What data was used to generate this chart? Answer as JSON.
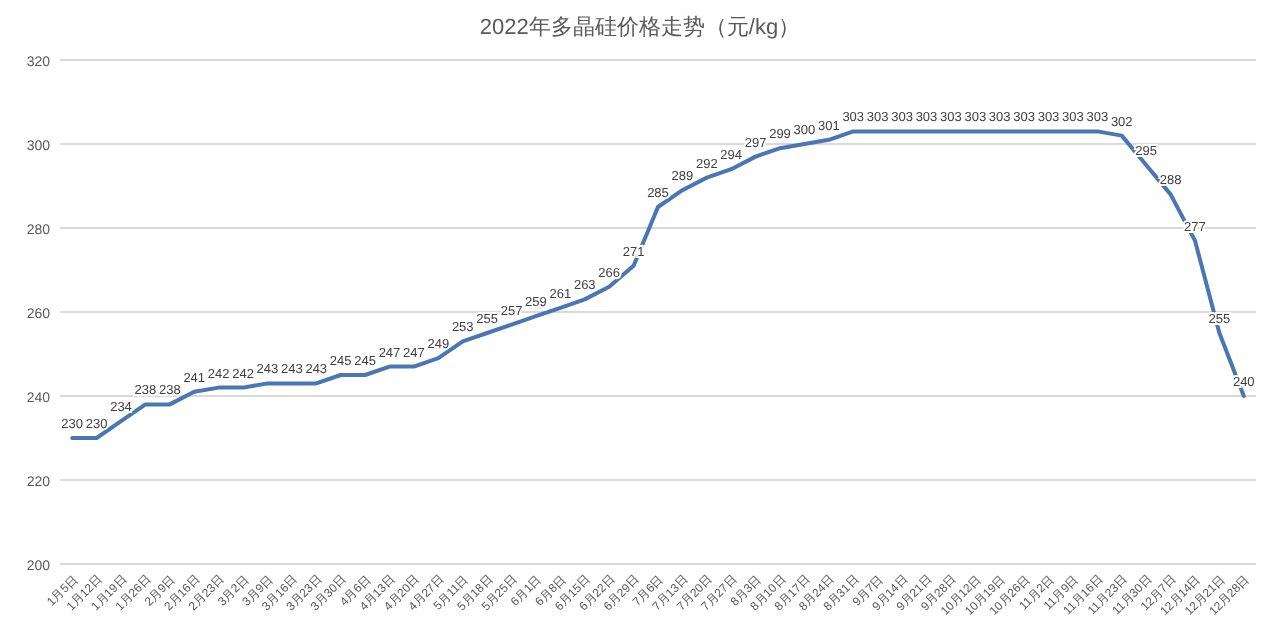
{
  "chart_data": {
    "type": "line",
    "title": "2022年多晶硅价格走势（元/kg）",
    "categories": [
      "1月5日",
      "1月12日",
      "1月19日",
      "1月26日",
      "2月9日",
      "2月16日",
      "2月23日",
      "3月2日",
      "3月9日",
      "3月16日",
      "3月23日",
      "3月30日",
      "4月6日",
      "4月13日",
      "4月20日",
      "4月27日",
      "5月11日",
      "5月18日",
      "5月25日",
      "6月1日",
      "6月8日",
      "6月15日",
      "6月22日",
      "6月29日",
      "7月6日",
      "7月13日",
      "7月20日",
      "7月27日",
      "8月3日",
      "8月10日",
      "8月17日",
      "8月24日",
      "8月31日",
      "9月7日",
      "9月14日",
      "9月21日",
      "9月28日",
      "10月12日",
      "10月19日",
      "10月26日",
      "11月2日",
      "11月9日",
      "11月16日",
      "11月23日",
      "11月30日",
      "12月7日",
      "12月14日",
      "12月21日",
      "12月28日"
    ],
    "series": [
      {
        "color": "#4a76b2",
        "values": [
          230,
          230,
          234,
          238,
          238,
          241,
          242,
          242,
          243,
          243,
          243,
          245,
          245,
          247,
          247,
          249,
          253,
          255,
          257,
          259,
          261,
          263,
          266,
          271,
          285,
          289,
          292,
          294,
          297,
          299,
          300,
          301,
          303,
          303,
          303,
          303,
          303,
          303,
          303,
          303,
          303,
          303,
          303,
          302,
          295,
          288,
          277,
          255,
          240
        ]
      }
    ],
    "ylim": [
      200,
      320
    ],
    "yticks": [
      200,
      220,
      240,
      260,
      280,
      300,
      320
    ],
    "grid": "y",
    "data_labels": true,
    "marker": "none",
    "line_style": "solid"
  }
}
